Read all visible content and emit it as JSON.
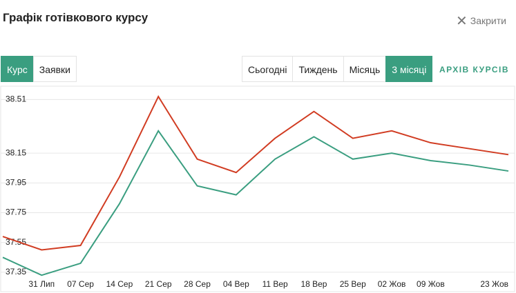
{
  "header": {
    "title": "Графік готівкового курсу",
    "close": "Закрити"
  },
  "tabs": [
    "Курс",
    "Заявки"
  ],
  "periods": [
    "Сьогодні",
    "Тиждень",
    "Місяць",
    "3 місяці"
  ],
  "archive": "АРХІВ КУРСІВ",
  "chart_data": {
    "type": "line",
    "categories": [
      null,
      "31 Лип",
      "07 Сер",
      "14 Сер",
      "21 Сер",
      "28 Сер",
      "04 Вер",
      "11 Вер",
      "18 Вер",
      "25 Вер",
      "02 Жов",
      "09 Жов",
      null,
      "23 Жов"
    ],
    "series": [
      {
        "color": "#d13c22",
        "values": [
          37.59,
          37.5,
          37.53,
          37.99,
          38.53,
          38.11,
          38.02,
          38.25,
          38.43,
          38.25,
          38.3,
          38.22,
          38.18,
          38.14
        ]
      },
      {
        "color": "#3a9e80",
        "values": [
          37.45,
          37.33,
          37.41,
          37.81,
          38.3,
          37.93,
          37.87,
          38.11,
          38.26,
          38.11,
          38.15,
          38.1,
          38.07,
          38.03
        ]
      }
    ],
    "ylim": [
      37.28,
      38.6
    ],
    "yticks": [
      37.35,
      37.55,
      37.75,
      37.95,
      38.15,
      38.51
    ],
    "grid": true
  }
}
